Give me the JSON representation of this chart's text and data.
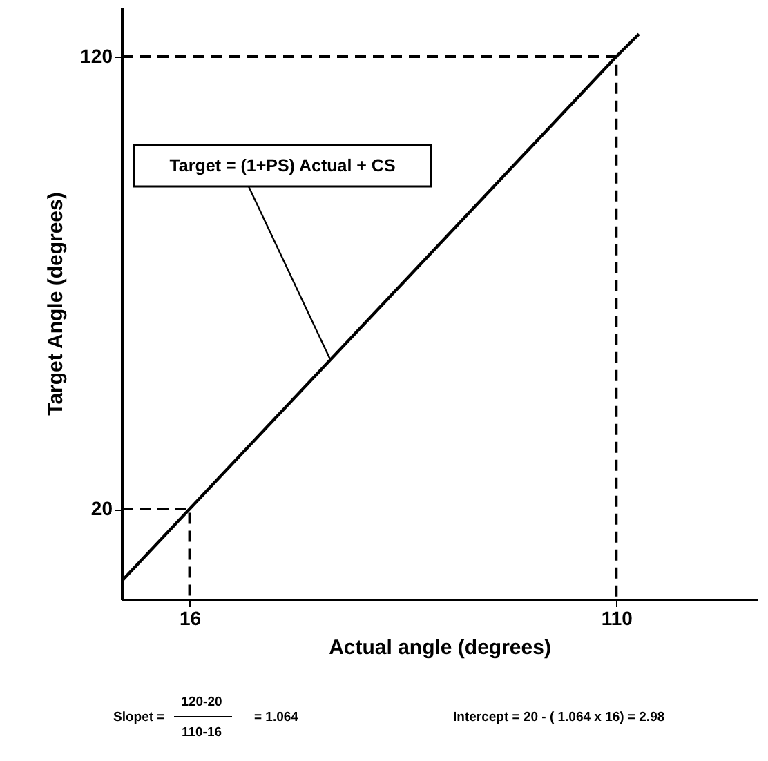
{
  "chart_data": {
    "type": "line",
    "xlabel": "Actual angle (degrees)",
    "ylabel": "Target Angle (degrees)",
    "xlim": [
      1,
      141
    ],
    "ylim": [
      0,
      131
    ],
    "xticks": [
      16,
      110
    ],
    "yticks": [
      20,
      120
    ],
    "grid": false,
    "marker": "none",
    "series": [
      {
        "color": "#000000",
        "line_style": "solid",
        "x": [
          1,
          16,
          110,
          115
        ],
        "values": [
          4,
          20,
          120,
          125
        ]
      },
      {
        "color": "#000000",
        "line_style": "dashed",
        "x": [
          1,
          16,
          16
        ],
        "values": [
          20,
          20,
          0
        ]
      },
      {
        "color": "#000000",
        "line_style": "dashed",
        "x": [
          1,
          110,
          110
        ],
        "values": [
          120,
          120,
          0
        ]
      }
    ],
    "annotations": [
      {
        "text": "Target = (1+PS) Actual + CS",
        "x": 47,
        "y": 53
      },
      "Slopet =",
      "120-20",
      "110-16",
      "= 1.064",
      "Intercept = 20 - ( 1.064 x 16) = 2.98"
    ]
  }
}
